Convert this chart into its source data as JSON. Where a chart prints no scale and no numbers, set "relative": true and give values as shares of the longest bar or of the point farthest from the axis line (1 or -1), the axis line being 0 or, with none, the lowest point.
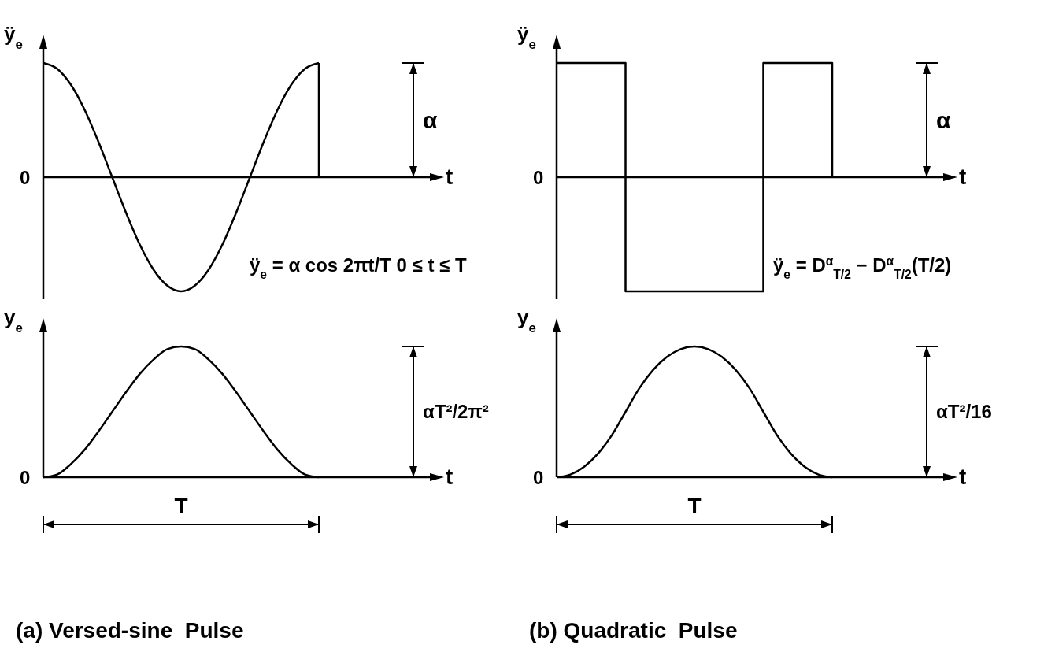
{
  "chart_data": [
    {
      "type": "line",
      "relative": true,
      "xlabel": "t",
      "ylabel": "ÿ$_{e}$",
      "categories": [
        null,
        null,
        null,
        null,
        null,
        null,
        null,
        null,
        null,
        null,
        null,
        null,
        null,
        null,
        null,
        null,
        null,
        null,
        null,
        null,
        null
      ],
      "series": [
        {
          "color": "#000000",
          "values": [
            1,
            0.95,
            0.81,
            0.59,
            0.31,
            0,
            -0.31,
            -0.59,
            -0.81,
            -0.95,
            -1,
            -0.95,
            -0.81,
            -0.59,
            -0.31,
            0,
            0.31,
            0.59,
            0.81,
            0.95,
            1
          ]
        }
      ],
      "annotations": [
        "0",
        "α",
        "ÿ$_{e}$ = α cos 2πt/T   0 ≤ t ≤ T"
      ]
    },
    {
      "type": "step",
      "relative": true,
      "xlabel": "t",
      "ylabel": "ÿ$_{e}$",
      "categories": [
        null,
        null,
        null,
        null,
        null
      ],
      "series": [
        {
          "color": "#000000",
          "values": [
            1,
            -1,
            -1,
            1,
            0
          ]
        }
      ],
      "annotations": [
        "0",
        "α",
        "ÿ$_{e}$ = D$^{α}$$_{T/2}$ − D$^{α}$$_{T/2}$(T/2)"
      ]
    },
    {
      "type": "line",
      "relative": true,
      "xlabel": "t",
      "ylabel": "y$_{e}$",
      "categories": [
        null,
        null,
        null,
        null,
        null,
        null,
        null,
        null,
        null,
        null,
        null,
        null,
        null,
        null,
        null,
        null,
        null,
        null,
        null,
        null,
        null
      ],
      "series": [
        {
          "color": "#000000",
          "values": [
            0,
            0.02,
            0.1,
            0.21,
            0.35,
            0.5,
            0.65,
            0.79,
            0.9,
            0.98,
            1,
            0.98,
            0.9,
            0.79,
            0.65,
            0.5,
            0.35,
            0.21,
            0.1,
            0.02,
            0
          ]
        }
      ],
      "annotations": [
        "0",
        "αT²/2π²",
        "T",
        "(a) Versed-sine  Pulse"
      ]
    },
    {
      "type": "line",
      "relative": true,
      "xlabel": "t",
      "ylabel": "y$_{e}$",
      "categories": [
        null,
        null,
        null,
        null,
        null,
        null,
        null,
        null,
        null,
        null,
        null,
        null,
        null,
        null,
        null,
        null,
        null,
        null,
        null,
        null,
        null
      ],
      "series": [
        {
          "color": "#000000",
          "values": [
            0,
            0.02,
            0.08,
            0.18,
            0.32,
            0.5,
            0.68,
            0.82,
            0.92,
            0.98,
            1,
            0.98,
            0.92,
            0.82,
            0.68,
            0.5,
            0.32,
            0.18,
            0.08,
            0.02,
            0
          ]
        }
      ],
      "annotations": [
        "0",
        "αT²/16",
        "T",
        "(b) Quadratic  Pulse"
      ]
    }
  ]
}
